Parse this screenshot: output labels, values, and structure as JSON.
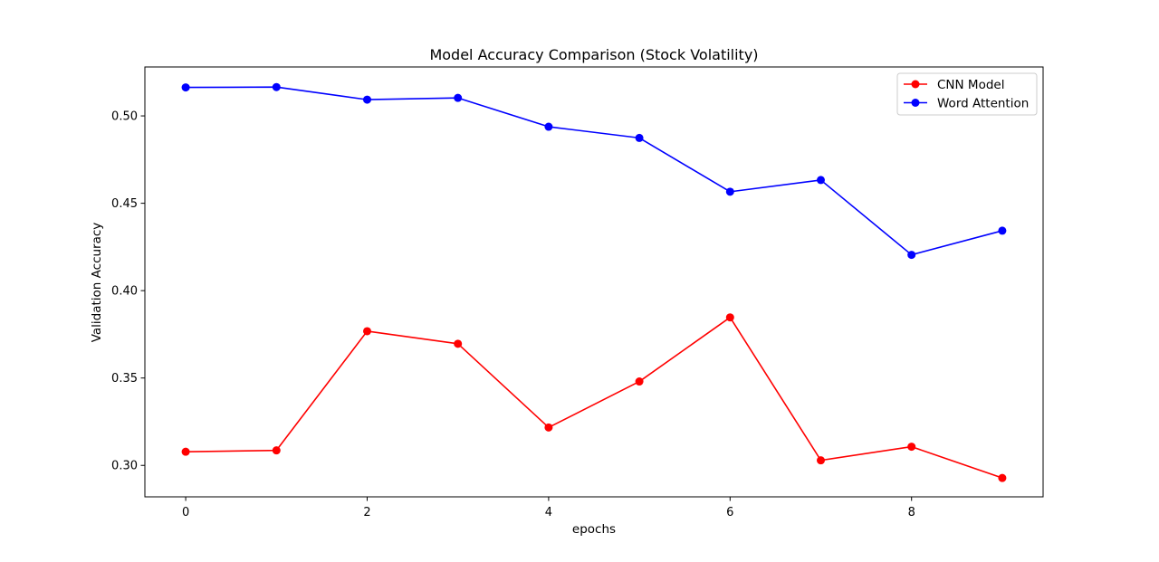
{
  "chart_data": {
    "type": "line",
    "title": "Model Accuracy Comparison (Stock Volatility)",
    "xlabel": "epochs",
    "ylabel": "Validation Accuracy",
    "x": [
      0,
      1,
      2,
      3,
      4,
      5,
      6,
      7,
      8,
      9
    ],
    "xlim": [
      -0.45,
      9.45
    ],
    "ylim": [
      0.282,
      0.528
    ],
    "xticks": [
      0,
      2,
      4,
      6,
      8
    ],
    "xtick_labels": [
      "0",
      "2",
      "4",
      "6",
      "8"
    ],
    "yticks": [
      0.3,
      0.35,
      0.4,
      0.45,
      0.5
    ],
    "ytick_labels": [
      "0.30",
      "0.35",
      "0.40",
      "0.45",
      "0.50"
    ],
    "grid": false,
    "legend_position": "top-right",
    "series": [
      {
        "name": "CNN Model",
        "color": "#ff0000",
        "marker": "circle",
        "values": [
          0.3078,
          0.3086,
          0.3768,
          0.3696,
          0.3217,
          0.348,
          0.3847,
          0.3029,
          0.3107,
          0.2928
        ]
      },
      {
        "name": "Word Attention",
        "color": "#0000ff",
        "marker": "circle",
        "values": [
          0.5163,
          0.5165,
          0.5093,
          0.5103,
          0.4938,
          0.4874,
          0.4566,
          0.4633,
          0.4205,
          0.4343
        ]
      }
    ]
  }
}
